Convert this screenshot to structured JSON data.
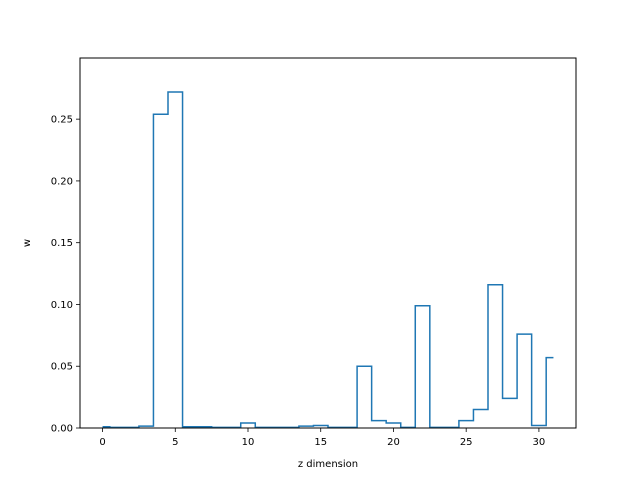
{
  "chart_data": {
    "type": "line",
    "drawstyle": "steps-mid",
    "xlabel": "z dimension",
    "ylabel": "w",
    "title": "",
    "x": [
      0,
      1,
      2,
      3,
      4,
      5,
      6,
      7,
      8,
      9,
      10,
      11,
      12,
      13,
      14,
      15,
      16,
      17,
      18,
      19,
      20,
      21,
      22,
      23,
      24,
      25,
      26,
      27,
      28,
      29,
      30,
      31
    ],
    "series": [
      {
        "color": "#1f77b4",
        "values": [
          0.001,
          0.0005,
          0.0005,
          0.0015,
          0.254,
          0.272,
          0.001,
          0.001,
          0.0005,
          0.0005,
          0.004,
          0.0005,
          0.0005,
          0.0005,
          0.0015,
          0.002,
          0.0005,
          0.0005,
          0.05,
          0.006,
          0.004,
          0.0005,
          0.099,
          0.0005,
          0.0005,
          0.006,
          0.015,
          0.116,
          0.024,
          0.076,
          0.002,
          0.057
        ]
      }
    ],
    "xlim": [
      -1.55,
      32.55
    ],
    "ylim": [
      0,
      0.2995
    ],
    "xticks": [
      {
        "value": 0,
        "label": "0"
      },
      {
        "value": 5,
        "label": "5"
      },
      {
        "value": 10,
        "label": "10"
      },
      {
        "value": 15,
        "label": "15"
      },
      {
        "value": 20,
        "label": "20"
      },
      {
        "value": 25,
        "label": "25"
      },
      {
        "value": 30,
        "label": "30"
      }
    ],
    "yticks": [
      {
        "value": 0.0,
        "label": "0.00"
      },
      {
        "value": 0.05,
        "label": "0.05"
      },
      {
        "value": 0.1,
        "label": "0.10"
      },
      {
        "value": 0.15,
        "label": "0.15"
      },
      {
        "value": 0.2,
        "label": "0.20"
      },
      {
        "value": 0.25,
        "label": "0.25"
      }
    ],
    "grid": false,
    "legend": "none"
  }
}
